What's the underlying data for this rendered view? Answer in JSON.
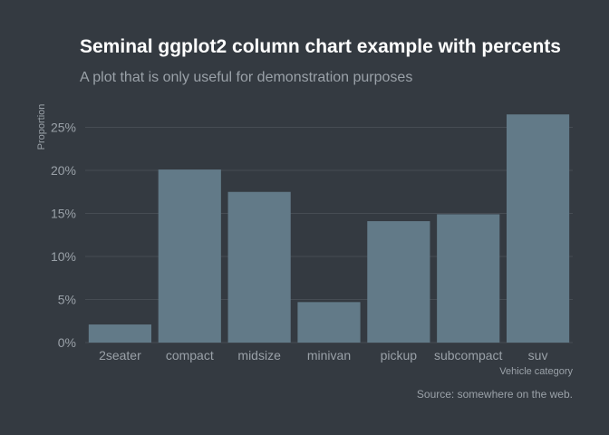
{
  "chart_data": {
    "type": "bar",
    "title": "Seminal ggplot2 column chart example with percents",
    "subtitle": "A plot that is only useful for demonstration purposes",
    "xlabel": "Vehicle category",
    "ylabel": "Proportion",
    "caption": "Source: somewhere on the web.",
    "categories": [
      "2seater",
      "compact",
      "midsize",
      "minivan",
      "pickup",
      "subcompact",
      "suv"
    ],
    "values": [
      0.021,
      0.201,
      0.175,
      0.047,
      0.141,
      0.149,
      0.265
    ],
    "ylim": [
      0,
      0.28
    ],
    "yticks": [
      0,
      0.05,
      0.1,
      0.15,
      0.2,
      0.25
    ],
    "ytick_labels": [
      "0%",
      "5%",
      "10%",
      "15%",
      "20%",
      "25%"
    ],
    "grid": "horizontal",
    "legend": "none",
    "colors": {
      "background": "#343a41",
      "bar": "#627a88",
      "grid": "#464c53",
      "text": "#9aa1a8",
      "title": "#ffffff"
    }
  }
}
